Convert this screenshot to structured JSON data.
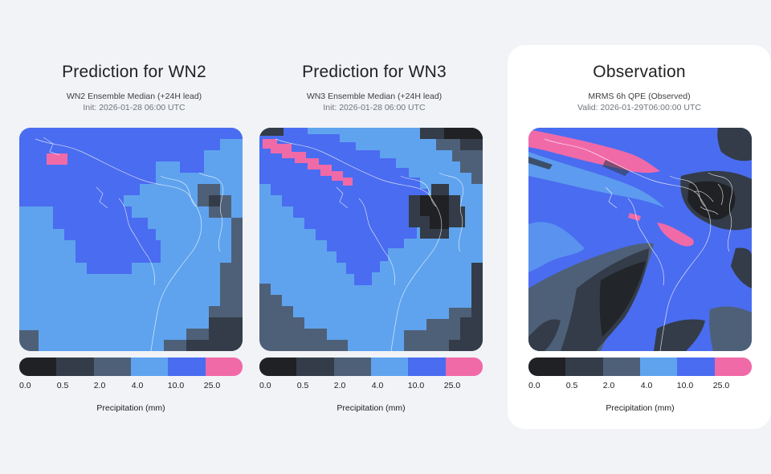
{
  "panels": [
    {
      "title": "Prediction for WN2",
      "subtitle": "WN2 Ensemble Median (+24H lead)",
      "init": "Init: 2026-01-28 06:00 UTC"
    },
    {
      "title": "Prediction for WN3",
      "subtitle": "WN3 Ensemble Median (+24H lead)",
      "init": "Init: 2026-01-28 06:00 UTC"
    },
    {
      "title": "Observation",
      "subtitle": "MRMS 6h QPE (Observed)",
      "init": "Valid: 2026-01-29T06:00:00 UTC"
    }
  ],
  "chart_data": [
    {
      "type": "heatmap",
      "title": "Prediction for WN2",
      "colorbar": {
        "label": "Precipitation (mm)",
        "ticks": [
          "0.0",
          "0.5",
          "2.0",
          "4.0",
          "10.0",
          "25.0"
        ],
        "colors": [
          "#202124",
          "#333c48",
          "#4e6078",
          "#5fa3ee",
          "#4a6cf0",
          "#f06aa8"
        ]
      }
    },
    {
      "type": "heatmap",
      "title": "Prediction for WN3",
      "colorbar": {
        "label": "Precipitation (mm)",
        "ticks": [
          "0.0",
          "0.5",
          "2.0",
          "4.0",
          "10.0",
          "25.0"
        ],
        "colors": [
          "#202124",
          "#333c48",
          "#4e6078",
          "#5fa3ee",
          "#4a6cf0",
          "#f06aa8"
        ]
      }
    },
    {
      "type": "heatmap",
      "title": "Observation",
      "colorbar": {
        "label": "Precipitation (mm)",
        "ticks": [
          "0.0",
          "0.5",
          "2.0",
          "4.0",
          "10.0",
          "25.0"
        ],
        "colors": [
          "#202124",
          "#333c48",
          "#4e6078",
          "#5fa3ee",
          "#4a6cf0",
          "#f06aa8"
        ]
      }
    }
  ]
}
